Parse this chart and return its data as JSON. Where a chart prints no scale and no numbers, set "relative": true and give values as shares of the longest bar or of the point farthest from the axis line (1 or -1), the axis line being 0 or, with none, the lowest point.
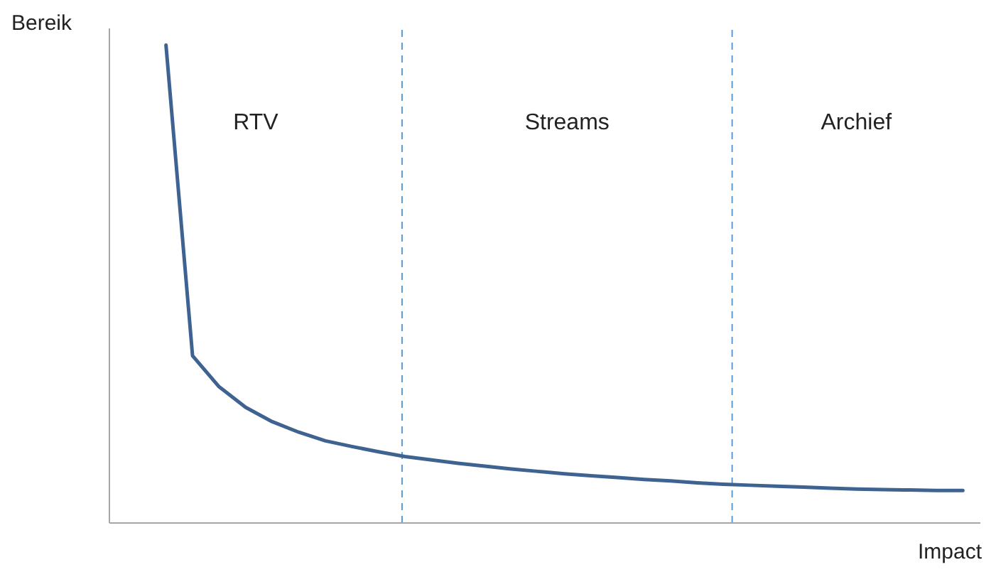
{
  "chart_data": {
    "type": "line",
    "relative": true,
    "xlabel": "Impact",
    "ylabel": "Bereik",
    "tick_labels": false,
    "grid": false,
    "legend": false,
    "marker": "none",
    "line_style": "solid",
    "categories": [
      null,
      null,
      null,
      null,
      null,
      null,
      null,
      null,
      null,
      null,
      null,
      null,
      null,
      null,
      null,
      null,
      null,
      null,
      null,
      null,
      null,
      null,
      null,
      null,
      null,
      null,
      null,
      null,
      null,
      null,
      null
    ],
    "series": [
      {
        "color": "#3f6391",
        "values": [
          1,
          0.35,
          0.285,
          0.242,
          0.212,
          0.19,
          0.172,
          0.16,
          0.149,
          0.139,
          0.132,
          0.125,
          0.119,
          0.113,
          0.108,
          0.103,
          0.099,
          0.095,
          0.091,
          0.088,
          0.084,
          0.081,
          0.079,
          0.077,
          0.075,
          0.073,
          0.071,
          0.07,
          0.069,
          0.068,
          0.068
        ]
      }
    ],
    "annotations": [
      "RTV",
      "Streams",
      "Archief"
    ]
  }
}
